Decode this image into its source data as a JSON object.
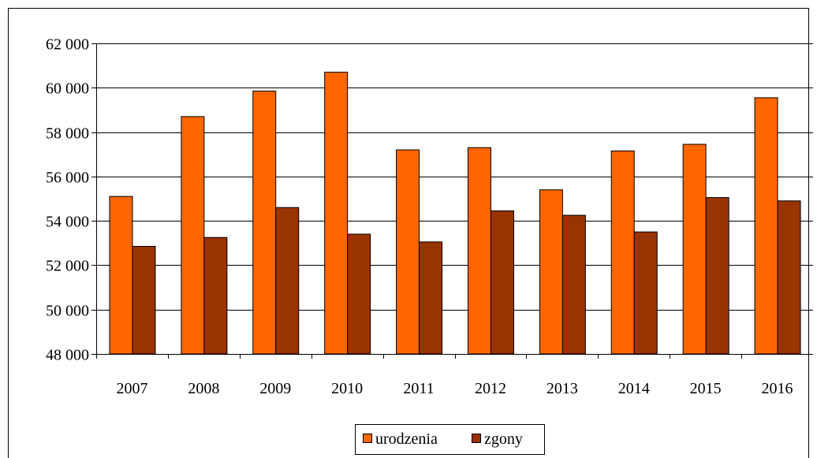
{
  "chart_data": {
    "type": "bar",
    "categories": [
      "2007",
      "2008",
      "2009",
      "2010",
      "2011",
      "2012",
      "2013",
      "2014",
      "2015",
      "2016"
    ],
    "series": [
      {
        "name": "urodzenia",
        "color": "#ff6600",
        "values": [
          55100,
          58700,
          59850,
          60700,
          57200,
          57300,
          55400,
          57150,
          57450,
          59550
        ]
      },
      {
        "name": "zgony",
        "color": "#993300",
        "values": [
          52850,
          53250,
          54600,
          53400,
          53050,
          54450,
          54250,
          53500,
          55050,
          54900
        ]
      }
    ],
    "yticks": [
      "48 000",
      "50 000",
      "52 000",
      "54 000",
      "56 000",
      "58 000",
      "60 000",
      "62 000"
    ],
    "ylim": [
      48000,
      62000
    ],
    "grid": true,
    "legend_position": "bottom-center"
  }
}
